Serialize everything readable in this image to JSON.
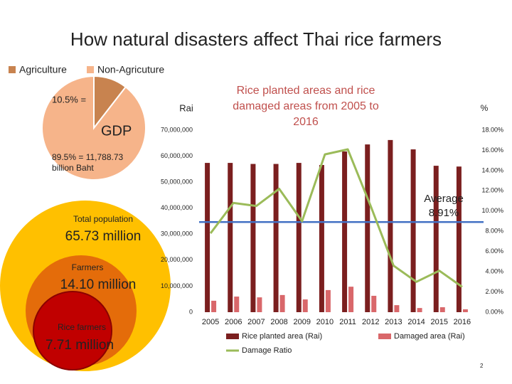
{
  "title": "How natural disasters affect Thai rice farmers",
  "page_number": "2",
  "population": [
    {
      "label": "Total population",
      "value_text": "65.73 million"
    },
    {
      "label": "Farmers",
      "value_text": "14.10 million"
    },
    {
      "label": "Rice farmers",
      "value_text": "7.71 million"
    }
  ],
  "chart_data": [
    {
      "type": "pie",
      "categories": [
        "Agriculture",
        "Non-Agricuture"
      ],
      "values": [
        10.5,
        89.5
      ],
      "colors": [
        "#c8834f",
        "#f6b48a"
      ],
      "annotations": [
        "10.5% =",
        "GDP",
        "89.5% = 11,788.73 billion Baht"
      ],
      "legend": "top-left"
    },
    {
      "type": "bar",
      "title": "Rice planted areas and rice damaged areas from 2005 to 2016",
      "y_label": "Rai",
      "y2_label": "%",
      "categories": [
        "2005",
        "2006",
        "2007",
        "2008",
        "2009",
        "2010",
        "2011",
        "2012",
        "2013",
        "2014",
        "2015",
        "2016"
      ],
      "series": [
        {
          "name": "Rice planted area (Rai)",
          "type": "bar",
          "color": "#7b1f1f",
          "values": [
            57400000,
            57400000,
            57000000,
            57000000,
            57400000,
            56600000,
            61800000,
            64500000,
            66200000,
            62600000,
            56300000,
            56000000
          ]
        },
        {
          "name": "Damaged area (Rai)",
          "type": "bar",
          "color": "#d9676a",
          "values": [
            4400000,
            6000000,
            5700000,
            6600000,
            4900000,
            8500000,
            9800000,
            6300000,
            2700000,
            1600000,
            1900000,
            1100000
          ]
        },
        {
          "name": "Damage Ratio",
          "type": "line",
          "axis": "y2",
          "color": "#9bbb59",
          "values": [
            7.8,
            10.8,
            10.5,
            12.2,
            9.0,
            15.6,
            16.1,
            10.5,
            4.6,
            3.0,
            4.1,
            2.5
          ]
        }
      ],
      "reference_line": {
        "label": "Average",
        "value": 8.91,
        "value_label": "8.91%",
        "axis": "y2",
        "color": "#4472c4"
      },
      "ylim": [
        0,
        70000000
      ],
      "yticks": [
        {
          "value": 0,
          "label": "0"
        },
        {
          "value": 10000000,
          "label": "10,000,000"
        },
        {
          "value": 20000000,
          "label": "20,000,000"
        },
        {
          "value": 30000000,
          "label": "30,000,000"
        },
        {
          "value": 40000000,
          "label": "40,000,000"
        },
        {
          "value": 50000000,
          "label": "50,000,000"
        },
        {
          "value": 60000000,
          "label": "60,000,000"
        },
        {
          "value": 70000000,
          "label": "70,000,000"
        }
      ],
      "y2lim": [
        0,
        18
      ],
      "y2ticks": [
        {
          "value": 0,
          "label": "0.00%"
        },
        {
          "value": 2,
          "label": "2.00%"
        },
        {
          "value": 4,
          "label": "4.00%"
        },
        {
          "value": 6,
          "label": "6.00%"
        },
        {
          "value": 8,
          "label": "8.00%"
        },
        {
          "value": 10,
          "label": "10.00%"
        },
        {
          "value": 12,
          "label": "12.00%"
        },
        {
          "value": 14,
          "label": "14.00%"
        },
        {
          "value": 16,
          "label": "16.00%"
        },
        {
          "value": 18,
          "label": "18.00%"
        }
      ],
      "grid": false,
      "legend": "bottom"
    }
  ]
}
